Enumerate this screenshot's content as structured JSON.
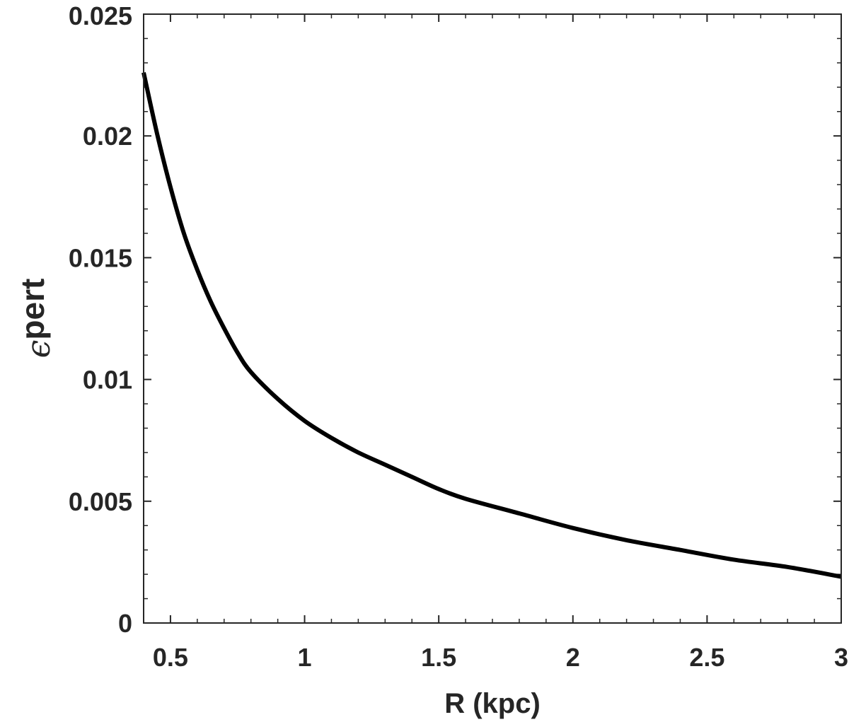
{
  "chart_data": {
    "type": "line",
    "title": "",
    "xlabel": "R (kpc)",
    "ylabel": {
      "symbol": "ϵ",
      "subscript": "pert"
    },
    "xlim": [
      0.4,
      3
    ],
    "ylim": [
      0,
      0.025
    ],
    "x_ticks": [
      0.5,
      1,
      1.5,
      2,
      2.5,
      3
    ],
    "x_tick_labels": [
      "0.5",
      "1",
      "1.5",
      "2",
      "2.5",
      "3"
    ],
    "y_ticks": [
      0,
      0.005,
      0.01,
      0.015,
      0.02,
      0.025
    ],
    "y_tick_labels": [
      "0",
      "0.005",
      "0.01",
      "0.015",
      "0.02",
      "0.025"
    ],
    "x_minor_step": 0.1,
    "y_minor_step": 0.001,
    "grid": false,
    "legend": "none",
    "series": [
      {
        "color": "#000000",
        "x": [
          0.4,
          0.45,
          0.5,
          0.55,
          0.6,
          0.65,
          0.7,
          0.75,
          0.8,
          0.9,
          1.0,
          1.1,
          1.2,
          1.3,
          1.4,
          1.5,
          1.6,
          1.8,
          2.0,
          2.2,
          2.4,
          2.6,
          2.8,
          3.0
        ],
        "values": [
          0.0226,
          0.0201,
          0.0179,
          0.016,
          0.0145,
          0.0132,
          0.0121,
          0.0111,
          0.0103,
          0.0092,
          0.0083,
          0.0076,
          0.007,
          0.0065,
          0.006,
          0.0055,
          0.0051,
          0.0045,
          0.0039,
          0.0034,
          0.003,
          0.0026,
          0.0023,
          0.0019
        ]
      }
    ]
  }
}
